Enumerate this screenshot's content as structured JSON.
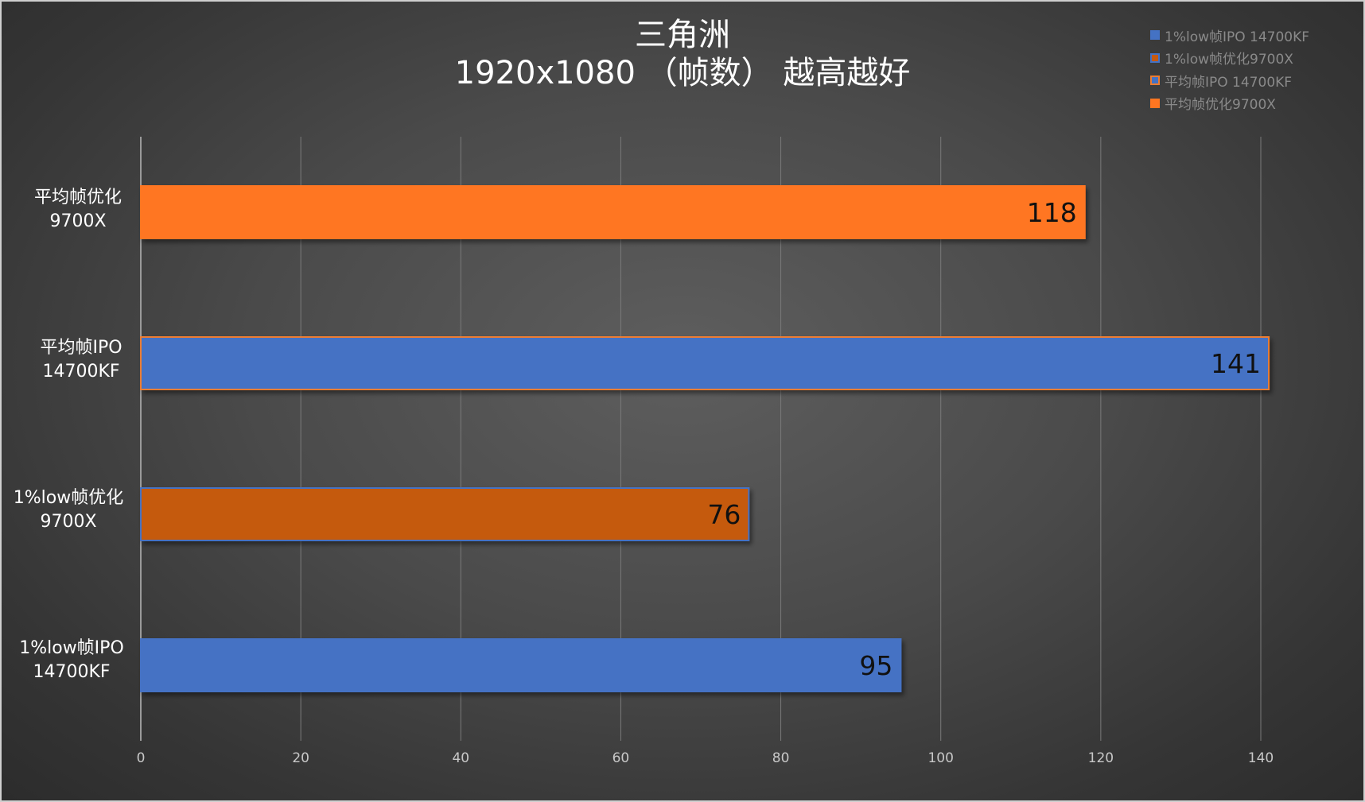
{
  "chart_data": {
    "type": "bar",
    "orientation": "horizontal",
    "title": "三角洲",
    "subtitle": "1920x1080 （帧数） 越高越好",
    "xlim": [
      0,
      140
    ],
    "x_ticks": [
      "0",
      "20",
      "40",
      "60",
      "80",
      "100",
      "120",
      "140"
    ],
    "grid": true,
    "legend_position": "top-right",
    "categories": [
      {
        "line1": "平均帧优化",
        "line2": "9700X"
      },
      {
        "line1": "平均帧IPO",
        "line2": "14700KF"
      },
      {
        "line1": "1%low帧优化",
        "line2": "9700X"
      },
      {
        "line1": "1%low帧IPO",
        "line2": "14700KF"
      }
    ],
    "values": [
      118,
      141,
      76,
      95
    ],
    "value_labels": [
      "118",
      "141",
      "76",
      "95"
    ],
    "bar_colors": [
      "#FF7621",
      "#4472C4",
      "#C55A11",
      "#4472C4"
    ],
    "bar_borders": [
      "#FF7621",
      "#ED7D31",
      "#4472C4",
      "#4472C4"
    ],
    "legend": [
      {
        "label": "1%low帧IPO 14700KF",
        "color": "#4472C4",
        "border": "#4472C4"
      },
      {
        "label": "1%low帧优化9700X",
        "color": "#C55A11",
        "border": "#4472C4"
      },
      {
        "label": "平均帧IPO 14700KF",
        "color": "#4472C4",
        "border": "#ED7D31"
      },
      {
        "label": "平均帧优化9700X",
        "color": "#FF7621",
        "border": "#FF7621"
      }
    ]
  }
}
